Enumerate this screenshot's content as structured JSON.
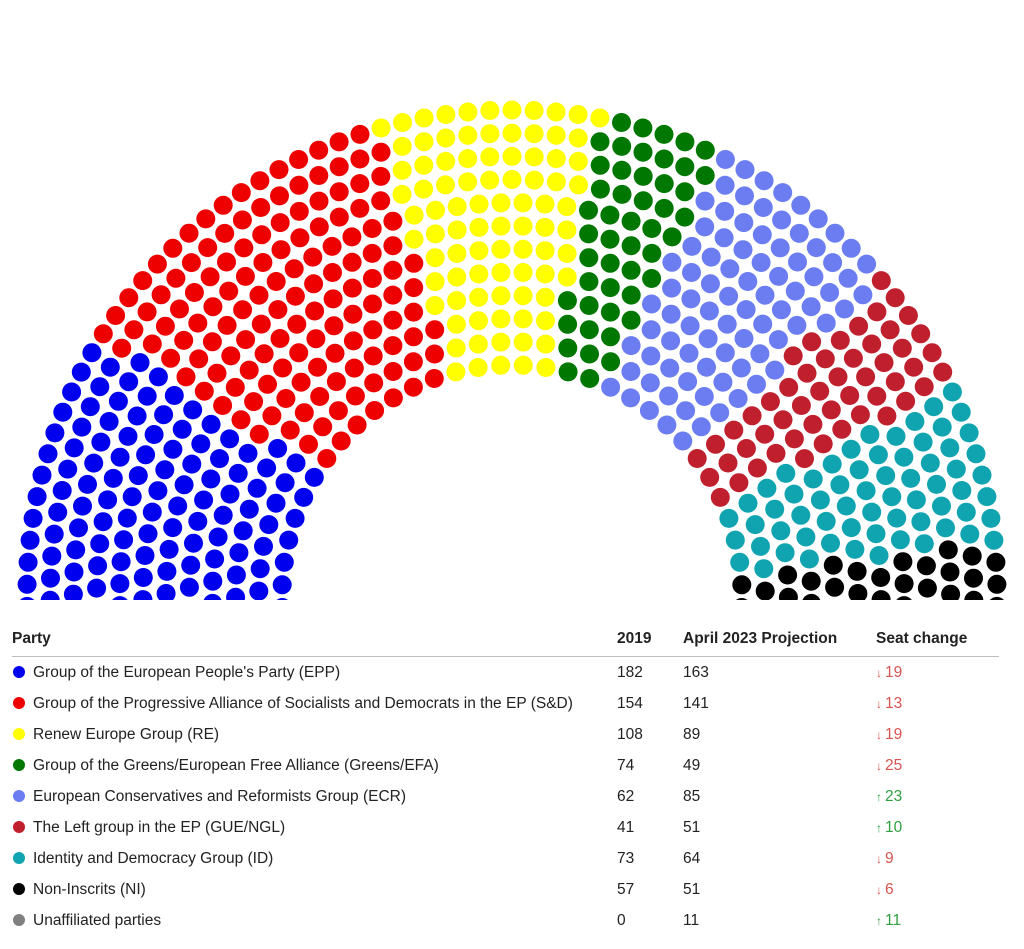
{
  "chart_data": {
    "type": "parliament",
    "title": "",
    "headers": {
      "party": "Party",
      "y2019": "2019",
      "projection": "April 2023 Projection",
      "change": "Seat change"
    },
    "parties": [
      {
        "name": "Group of the European People's Party (EPP)",
        "seats_2019": 182,
        "seats_projection": 163,
        "change": 19,
        "direction": "down",
        "color": "#0000ee"
      },
      {
        "name": "Group of the Progressive Alliance of Socialists and Democrats in the EP (S&D)",
        "seats_2019": 154,
        "seats_projection": 141,
        "change": 13,
        "direction": "down",
        "color": "#ee0000"
      },
      {
        "name": "Renew Europe Group (RE)",
        "seats_2019": 108,
        "seats_projection": 89,
        "change": 19,
        "direction": "down",
        "color": "#ffff00"
      },
      {
        "name": "Group of the Greens/European Free Alliance (Greens/EFA)",
        "seats_2019": 74,
        "seats_projection": 49,
        "change": 25,
        "direction": "down",
        "color": "#007700"
      },
      {
        "name": "European Conservatives and Reformists Group (ECR)",
        "seats_2019": 62,
        "seats_projection": 85,
        "change": 23,
        "direction": "up",
        "color": "#6b7df0"
      },
      {
        "name": "The Left group in the EP (GUE/NGL)",
        "seats_2019": 41,
        "seats_projection": 51,
        "change": 10,
        "direction": "up",
        "color": "#c0202e"
      },
      {
        "name": "Identity and Democracy Group (ID)",
        "seats_2019": 73,
        "seats_projection": 64,
        "change": 9,
        "direction": "down",
        "color": "#10a4b0"
      },
      {
        "name": "Non-Inscrits (NI)",
        "seats_2019": 57,
        "seats_projection": 51,
        "change": 6,
        "direction": "down",
        "color": "#000000"
      },
      {
        "name": "Unaffiliated parties",
        "seats_2019": 0,
        "seats_projection": 11,
        "change": 11,
        "direction": "up",
        "color": "#808080"
      }
    ],
    "empty_seat_color": "#ffffff",
    "empty_seat_stroke": "#cccccc"
  }
}
